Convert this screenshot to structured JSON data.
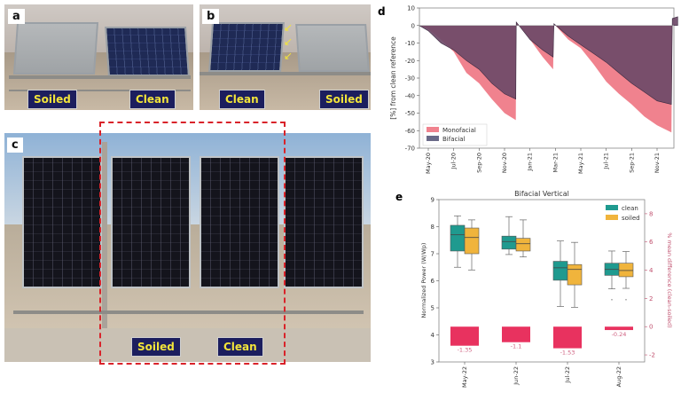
{
  "panel_a": {
    "letter": "a",
    "labels": [
      "Soiled",
      "Clean"
    ]
  },
  "panel_b": {
    "letter": "b",
    "labels": [
      "Clean",
      "Soiled"
    ]
  },
  "panel_c": {
    "letter": "c",
    "labels": [
      "Soiled",
      "Clean"
    ]
  },
  "colors": {
    "monofacial": "#f0828e",
    "bifacial": "#6e4a68",
    "clean": "#1f9a8f",
    "soiled": "#f0b43c",
    "diff_bar": "#e8325f",
    "label_box": "#1c1e5e",
    "label_text": "#f2e43a",
    "dashed_box": "#d9232a"
  },
  "chart_data": [
    {
      "panel": "d",
      "type": "area",
      "ylabel": "[%] from clean reference",
      "ylim": [
        -70,
        10
      ],
      "yticks": [
        10,
        0,
        -10,
        -20,
        -30,
        -40,
        -50,
        -60,
        -70
      ],
      "xticks": [
        "May-20",
        "Jul-20",
        "Sep-20",
        "Nov-20",
        "Jan-21",
        "Mar-21",
        "May-21",
        "Jul-21",
        "Sep-21",
        "Nov-21"
      ],
      "legend": {
        "placement": "lower-left",
        "entries": [
          "Monofacial",
          "Bifacial"
        ]
      },
      "series": [
        {
          "name": "Monofacial",
          "points": [
            [
              "2020-04-10",
              0
            ],
            [
              "2020-05-01",
              -2
            ],
            [
              "2020-06-01",
              -8
            ],
            [
              "2020-07-01",
              -15
            ],
            [
              "2020-08-01",
              -27
            ],
            [
              "2020-09-01",
              -33
            ],
            [
              "2020-10-01",
              -42
            ],
            [
              "2020-11-01",
              -50
            ],
            [
              "2020-11-28",
              -54
            ],
            [
              "2020-11-29",
              2
            ],
            [
              "2021-01-01",
              -8
            ],
            [
              "2021-02-01",
              -18
            ],
            [
              "2021-02-26",
              -25
            ],
            [
              "2021-02-28",
              1
            ],
            [
              "2021-04-01",
              -8
            ],
            [
              "2021-05-01",
              -13
            ],
            [
              "2021-06-01",
              -22
            ],
            [
              "2021-07-01",
              -32
            ],
            [
              "2021-08-01",
              -39
            ],
            [
              "2021-09-01",
              -45
            ],
            [
              "2021-10-01",
              -52
            ],
            [
              "2021-11-01",
              -57
            ],
            [
              "2021-12-05",
              -61
            ],
            [
              "2021-12-07",
              0
            ],
            [
              "2021-12-20",
              0
            ]
          ]
        },
        {
          "name": "Bifacial",
          "points": [
            [
              "2020-04-10",
              0
            ],
            [
              "2020-05-01",
              -3
            ],
            [
              "2020-06-01",
              -10
            ],
            [
              "2020-07-01",
              -14
            ],
            [
              "2020-08-01",
              -20
            ],
            [
              "2020-09-01",
              -25
            ],
            [
              "2020-10-01",
              -33
            ],
            [
              "2020-11-01",
              -39
            ],
            [
              "2020-11-28",
              -42
            ],
            [
              "2020-11-29",
              2
            ],
            [
              "2021-01-01",
              -8
            ],
            [
              "2021-02-01",
              -14
            ],
            [
              "2021-02-26",
              -18
            ],
            [
              "2021-02-28",
              1
            ],
            [
              "2021-04-01",
              -6
            ],
            [
              "2021-05-01",
              -11
            ],
            [
              "2021-06-01",
              -16
            ],
            [
              "2021-07-01",
              -21
            ],
            [
              "2021-08-01",
              -27
            ],
            [
              "2021-09-01",
              -33
            ],
            [
              "2021-10-01",
              -38
            ],
            [
              "2021-11-01",
              -43
            ],
            [
              "2021-12-05",
              -45
            ],
            [
              "2021-12-07",
              4
            ],
            [
              "2021-12-20",
              5
            ]
          ]
        }
      ]
    },
    {
      "panel": "e",
      "type": "box",
      "title": "Bifacial Vertical",
      "ylabel": "Normalized Power (W/Wp)",
      "ylabel_right": "% mean difference (clean-soiled)",
      "ylim": [
        3,
        9
      ],
      "ylim_right": [
        -2.5,
        9
      ],
      "yticks": [
        3,
        4,
        5,
        6,
        7,
        8,
        9
      ],
      "yticks_right": [
        -2,
        0,
        2,
        4,
        6,
        8
      ],
      "categories": [
        "May-22",
        "Jun-22",
        "Jul-22",
        "Aug-22"
      ],
      "legend": {
        "placement": "top-right",
        "entries": [
          "clean",
          "soiled"
        ]
      },
      "series": [
        {
          "name": "clean",
          "boxes": [
            {
              "min": 6.5,
              "q1": 7.1,
              "median": 7.7,
              "q3": 8.05,
              "max": 8.4
            },
            {
              "min": 6.97,
              "q1": 7.17,
              "median": 7.45,
              "q3": 7.65,
              "max": 8.37
            },
            {
              "min": 5.05,
              "q1": 6.02,
              "median": 6.48,
              "q3": 6.72,
              "max": 7.47
            },
            {
              "min": 5.7,
              "q1": 6.2,
              "median": 6.42,
              "q3": 6.65,
              "max": 7.1,
              "outliers": [
                5.3
              ]
            }
          ]
        },
        {
          "name": "soiled",
          "boxes": [
            {
              "min": 6.4,
              "q1": 7.0,
              "median": 7.6,
              "q3": 7.95,
              "max": 8.25
            },
            {
              "min": 6.88,
              "q1": 7.1,
              "median": 7.37,
              "q3": 7.57,
              "max": 8.25
            },
            {
              "min": 5.02,
              "q1": 5.85,
              "median": 6.42,
              "q3": 6.6,
              "max": 7.42
            },
            {
              "min": 5.72,
              "q1": 6.15,
              "median": 6.38,
              "q3": 6.65,
              "max": 7.08,
              "outliers": [
                5.3
              ]
            }
          ]
        }
      ],
      "mean_difference": [
        -1.35,
        -1.1,
        -1.53,
        -0.24
      ],
      "mean_difference_labels": [
        "-1.35",
        "-1.1",
        "-1.53",
        "-0.24"
      ]
    }
  ]
}
